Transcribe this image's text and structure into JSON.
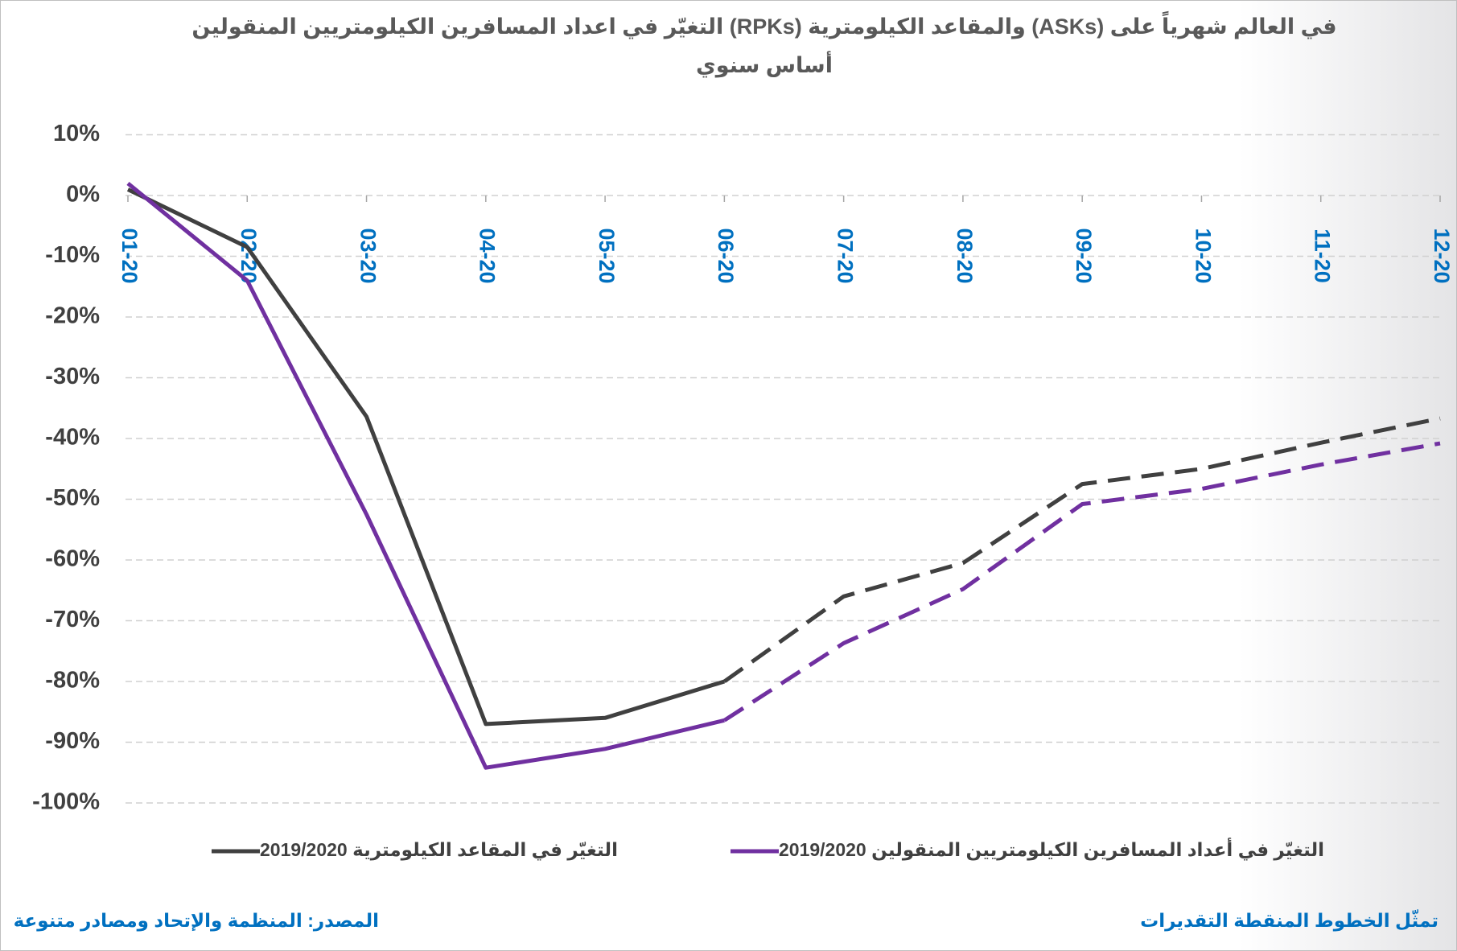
{
  "chart_data": {
    "type": "line",
    "title": [
      "التغيّر في اعداد المسافرين الكيلومتريين المنقولين (RPKs) والمقاعد الكيلومترية (ASKs) في العالم شهرياً على",
      "أساس سنوي"
    ],
    "categories": [
      "01-20",
      "02-20",
      "03-20",
      "04-20",
      "05-20",
      "06-20",
      "07-20",
      "08-20",
      "09-20",
      "10-20",
      "11-20",
      "12-20"
    ],
    "series": [
      {
        "name": "التغيّر في المقاعد الكيلومترية 2019/2020",
        "color": "#404040",
        "values": [
          1,
          -8.5,
          -36.4,
          -87,
          -86,
          -80,
          -66,
          -60.5,
          -47.5,
          -45,
          -40.7,
          -36.7
        ]
      },
      {
        "name": "التغيّر في أعداد المسافرين الكيلومتريين المنقولين 2019/2020",
        "color": "#7030a0",
        "values": [
          2,
          -14,
          -52.5,
          -94.2,
          -91.1,
          -86.4,
          -73.7,
          -64.8,
          -50.8,
          -48.3,
          -44.3,
          -40.8
        ]
      }
    ],
    "dashed_from": 5,
    "ylim": [
      -100,
      10
    ],
    "yticks": [
      {
        "value": 10,
        "label": "10%"
      },
      {
        "value": 0,
        "label": "0%"
      },
      {
        "value": -10,
        "label": "-10%"
      },
      {
        "value": -20,
        "label": "-20%"
      },
      {
        "value": -30,
        "label": "-30%"
      },
      {
        "value": -40,
        "label": "-40%"
      },
      {
        "value": -50,
        "label": "-50%"
      },
      {
        "value": -60,
        "label": "-60%"
      },
      {
        "value": -70,
        "label": "-70%"
      },
      {
        "value": -80,
        "label": "-80%"
      },
      {
        "value": -90,
        "label": "-90%"
      },
      {
        "value": -100,
        "label": "-100%"
      }
    ],
    "grid": true,
    "source": "المصدر: المنظمة والإتحاد ومصادر متنوعة",
    "note": "تمثّل الخطوط المنقطة التقديرات"
  }
}
